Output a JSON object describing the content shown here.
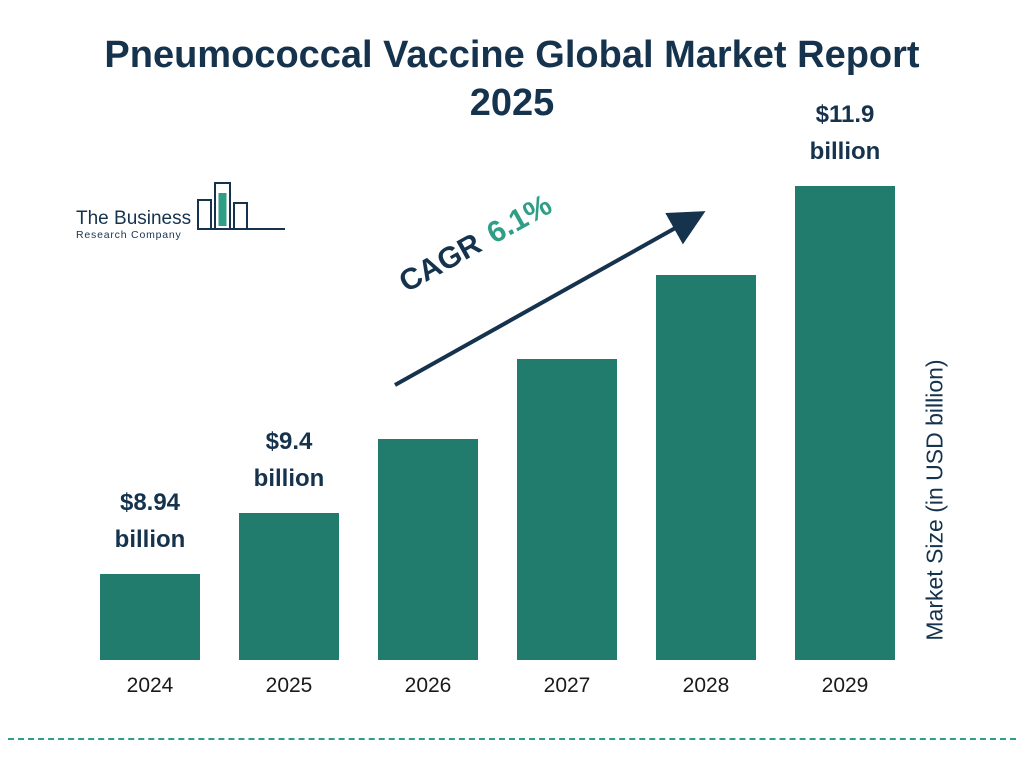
{
  "page": {
    "title_line1": "Pneumococcal Vaccine Global Market Report",
    "title_line2": "2025"
  },
  "logo": {
    "name_line1": "The Business",
    "name_line2": "Research Company"
  },
  "cagr": {
    "label": "CAGR",
    "value": "6.1%"
  },
  "y_axis_label": "Market Size (in USD billion)",
  "colors": {
    "navy": "#16334E",
    "teal": "#217C6D",
    "teal_bright": "#2E9E86"
  },
  "chart_data": {
    "type": "bar",
    "title": "Pneumococcal Vaccine Global Market Report 2025",
    "categories": [
      "2024",
      "2025",
      "2026",
      "2027",
      "2028",
      "2029"
    ],
    "values": [
      8.94,
      9.4,
      9.97,
      10.58,
      11.22,
      11.9
    ],
    "value_labels": [
      "$8.94 billion",
      "$9.4 billion",
      null,
      null,
      null,
      "$11.9 billion"
    ],
    "ylabel": "Market Size (in USD billion)",
    "xlabel": "",
    "cagr": "6.1%",
    "bar_color": "#217C6D",
    "grid": false,
    "legend": "none",
    "ylim": [
      8.28,
      12.2
    ]
  }
}
